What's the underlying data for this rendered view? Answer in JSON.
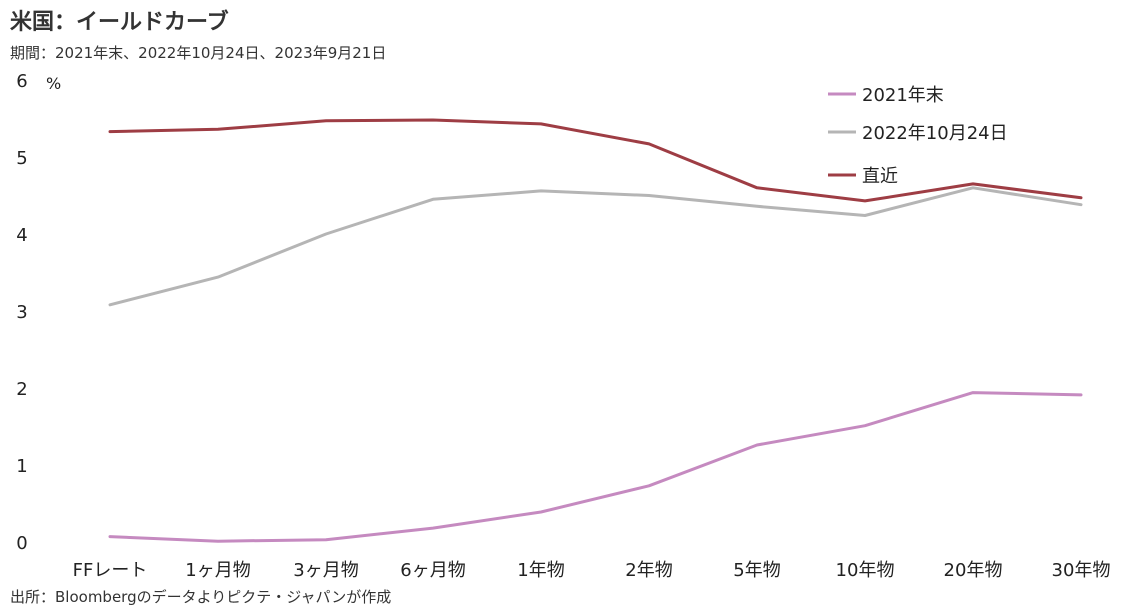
{
  "title": "米国：イールドカーブ",
  "subtitle": "期間：2021年末、2022年10月24日、2023年9月21日",
  "source": "出所：Bloombergのデータよりピクテ・ジャパンが作成",
  "chart_data": {
    "type": "line",
    "categories": [
      "FFレート",
      "1ヶ月物",
      "3ヶ月物",
      "6ヶ月物",
      "1年物",
      "2年物",
      "5年物",
      "10年物",
      "20年物",
      "30年物"
    ],
    "ylabel": "%",
    "ylim": [
      0,
      6
    ],
    "yticks": [
      "0",
      "1",
      "2",
      "3",
      "4",
      "5",
      "6"
    ],
    "grid": false,
    "legend_position": "top-right",
    "series": [
      {
        "name": "2021年末",
        "color": "#c58ac0",
        "values": [
          0.07,
          0.01,
          0.03,
          0.18,
          0.39,
          0.73,
          1.26,
          1.51,
          1.94,
          1.91
        ]
      },
      {
        "name": "2022年10月24日",
        "color": "#b5b5b5",
        "values": [
          3.08,
          3.44,
          4.0,
          4.45,
          4.56,
          4.5,
          4.36,
          4.24,
          4.6,
          4.38
        ]
      },
      {
        "name": "直近",
        "color": "#9e3d44",
        "values": [
          5.33,
          5.36,
          5.47,
          5.48,
          5.43,
          5.17,
          4.6,
          4.43,
          4.65,
          4.47
        ]
      }
    ]
  }
}
